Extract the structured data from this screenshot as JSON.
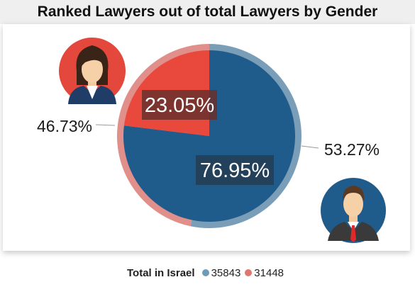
{
  "chart_data": {
    "type": "pie",
    "title": "Ranked Lawyers out of total Lawyers by Gender",
    "outer_ring": {
      "slices": [
        {
          "label": "53.27%",
          "value": 53.27,
          "color": "#7a9eb8"
        },
        {
          "label": "46.73%",
          "value": 46.73,
          "color": "#e08f8a"
        }
      ]
    },
    "inner_pie": {
      "slices": [
        {
          "label": "76.95%",
          "value": 76.95,
          "color": "#1f5c8b"
        },
        {
          "label": "23.05%",
          "value": 23.05,
          "color": "#e9493d"
        }
      ]
    },
    "legend": {
      "title": "Total in Israel",
      "items": [
        {
          "label": "35843",
          "value": 35843,
          "color": "#6f9bbb"
        },
        {
          "label": "31448",
          "value": 31448,
          "color": "#e0776f"
        }
      ]
    }
  },
  "icons": {
    "female": "female-lawyer-avatar",
    "male": "male-lawyer-avatar"
  }
}
